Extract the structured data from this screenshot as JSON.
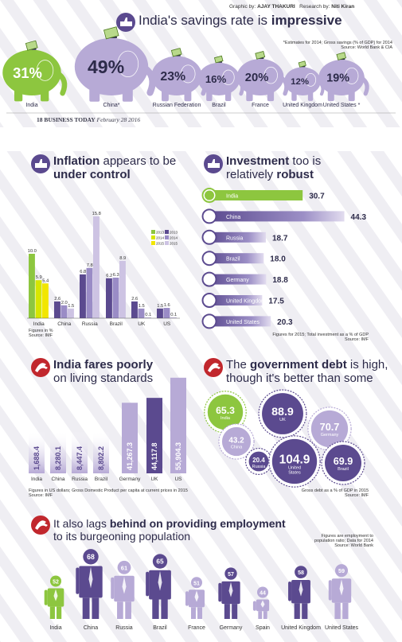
{
  "credits": {
    "graphic_label": "Graphic by:",
    "graphic_name": "AJAY THAKURI",
    "research_label": "Research by:",
    "research_name": "Niti Kiran"
  },
  "footer": {
    "page": "18",
    "magazine": "BUSINESS TODAY",
    "date": "February 28 2016"
  },
  "colors": {
    "green": "#8dc63f",
    "purple": "#5b4a8f",
    "lavender": "#b7aad6",
    "lightpurple": "#cdc3e3",
    "red": "#c1272d",
    "dark": "#2d2b4a",
    "yellow": "#f2e600"
  },
  "savings": {
    "title_plain": "India's savings rate is",
    "title_bold": "impressive",
    "note": "*Estimates for 2014; Gross savings (% of GDP) for 2014",
    "source": "Source: World Bank & CIA",
    "chart_data": {
      "type": "bar",
      "categories": [
        "India",
        "China*",
        "Russian Federation",
        "Brazil",
        "France",
        "United Kingdom",
        "United States *"
      ],
      "values": [
        31,
        49,
        23,
        16,
        20,
        12,
        19
      ],
      "labels": [
        "31%",
        "49%",
        "23%",
        "16%",
        "20%",
        "12%",
        "19%"
      ]
    }
  },
  "inflation": {
    "title_bold": "Inflation",
    "title_plain": "appears to be",
    "title_bold2": "under control",
    "note": "Figures in %",
    "source": "Source: IMF",
    "chart_data": {
      "type": "bar",
      "categories": [
        "India",
        "China",
        "Russia",
        "Brazil",
        "UK",
        "US"
      ],
      "series": [
        {
          "name": "2013",
          "values": [
            10.0,
            2.6,
            6.8,
            6.2,
            2.6,
            1.5
          ]
        },
        {
          "name": "2014",
          "values": [
            5.9,
            2.0,
            7.8,
            6.3,
            1.5,
            1.6
          ]
        },
        {
          "name": "2015",
          "values": [
            5.4,
            1.5,
            15.8,
            8.9,
            0.1,
            0.1
          ]
        }
      ],
      "labels": [
        [
          "10.0",
          "5.9",
          "5.4"
        ],
        [
          "2.6",
          "2.0",
          "1.5"
        ],
        [
          "6.8",
          "7.8",
          "15.8"
        ],
        [
          "6.2",
          "6.3",
          "8.9"
        ],
        [
          "2.6",
          "1.5",
          "0.1"
        ],
        [
          "1.5",
          "1.6",
          "0.1"
        ]
      ],
      "legend_years": [
        "2013",
        "2014",
        "2015"
      ]
    }
  },
  "investment": {
    "title_bold": "Investment",
    "title_plain": "too is",
    "title_plain2": "relatively",
    "title_bold2": "robust",
    "note": "Figures for 2015; Total investment as a % of GDP",
    "source": "Source: IMF",
    "chart_data": {
      "type": "bar",
      "categories": [
        "India",
        "China",
        "Russia",
        "Brazil",
        "Germany",
        "United Kingdom",
        "United States"
      ],
      "values": [
        30.7,
        44.3,
        18.7,
        18.0,
        18.8,
        17.5,
        20.3
      ],
      "labels": [
        "30.7",
        "44.3",
        "18.7",
        "18.0",
        "18.8",
        "17.5",
        "20.3"
      ]
    }
  },
  "living": {
    "title_bold": "India fares poorly",
    "title_plain": "on living standards",
    "note": "Figures in US dollars; Gross Domestic Product per capita at current prices in 2015",
    "source": "Source: IMF",
    "chart_data": {
      "type": "bar",
      "categories": [
        "India",
        "China",
        "Russia",
        "Brazil",
        "Germany",
        "UK",
        "US"
      ],
      "values": [
        1688.4,
        8280.1,
        8447.4,
        8802.2,
        41267.3,
        44117.8,
        55904.3
      ],
      "labels": [
        "1,688.4",
        "8,280.1",
        "8,447.4",
        "8,802.2",
        "41,267.3",
        "44,117.8",
        "55,904.3"
      ]
    }
  },
  "debt": {
    "title_plain": "The",
    "title_bold": "government debt",
    "title_plain2": "is high,",
    "title_plain3": "though it's better than some",
    "note": "Gross debt as a % of GDP in 2015",
    "source": "Source: IMF",
    "chart_data": {
      "type": "bubble",
      "categories": [
        "India",
        "UK",
        "Germany",
        "China",
        "Russia",
        "United States",
        "Brazil"
      ],
      "values": [
        65.3,
        88.9,
        70.7,
        43.2,
        20.4,
        104.9,
        69.9
      ],
      "labels": [
        "65.3",
        "88.9",
        "70.7",
        "43.2",
        "20.4",
        "104.9",
        "69.9"
      ]
    }
  },
  "employment": {
    "title_plain": "It also lags",
    "title_bold": "behind on providing employment",
    "title_plain2": "to its burgeoning population",
    "note1": "Figures are employment to",
    "note2": "population ratio; Data for 2014",
    "source": "Source: World Bank",
    "chart_data": {
      "type": "bar",
      "categories": [
        "India",
        "China",
        "Russia",
        "Brazil",
        "France",
        "Germany",
        "Spain",
        "United Kingdom",
        "United States"
      ],
      "values": [
        52,
        68,
        61,
        65,
        51,
        57,
        44,
        58,
        59
      ],
      "labels": [
        "52",
        "68",
        "61",
        "65",
        "51",
        "57",
        "44",
        "58",
        "59"
      ]
    }
  }
}
